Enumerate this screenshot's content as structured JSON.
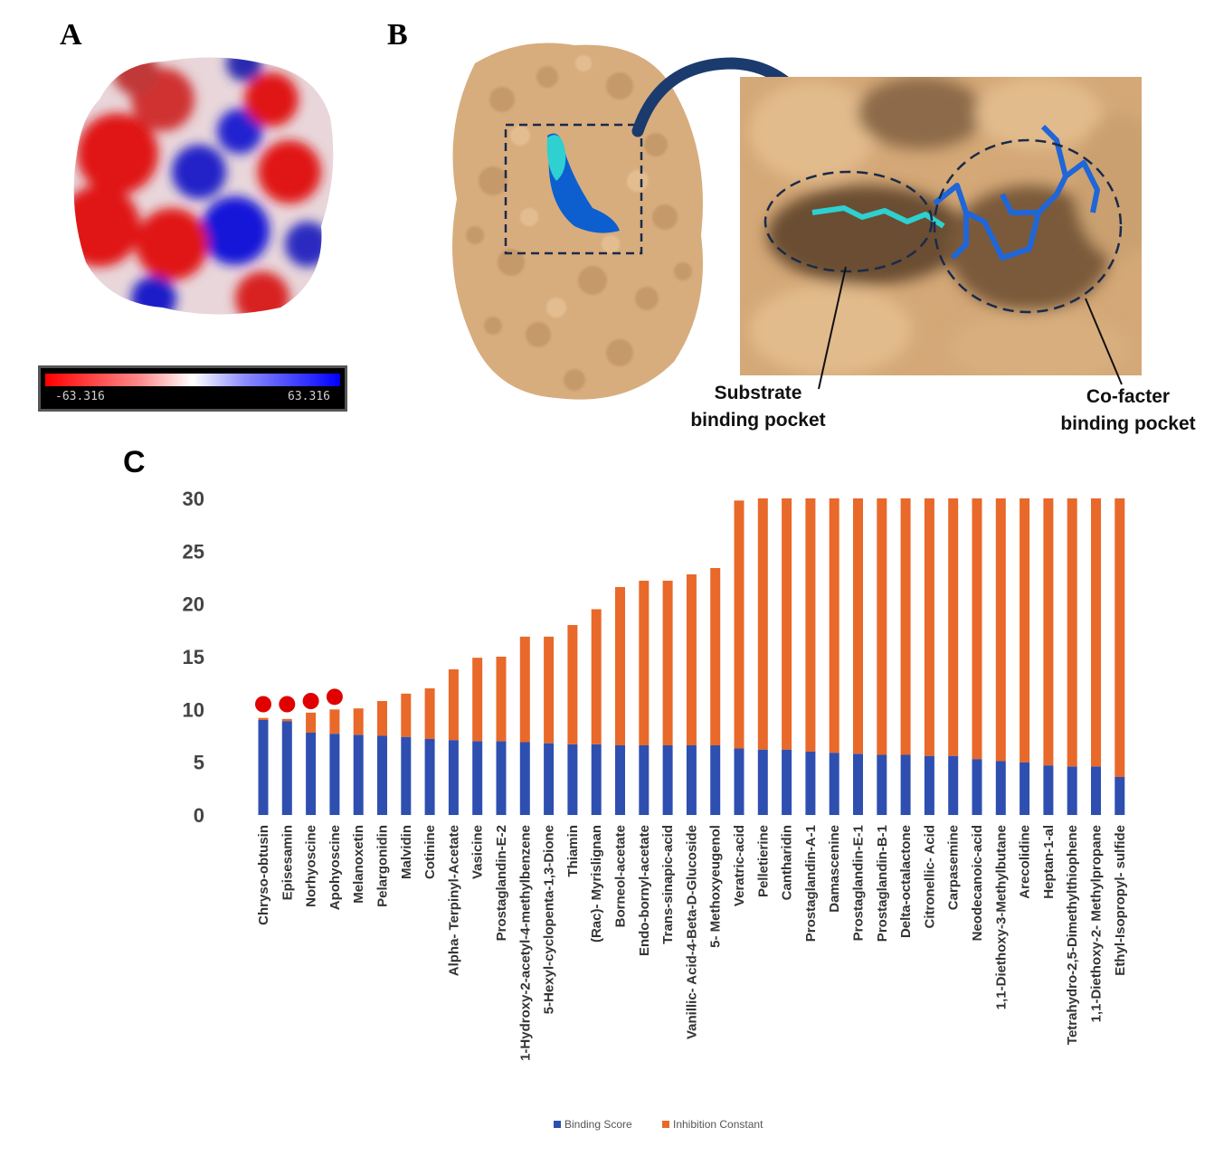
{
  "figure": {
    "panel_a": {
      "letter": "A",
      "colorbar": {
        "min_label": "-63.316",
        "max_label": "63.316"
      }
    },
    "panel_b": {
      "letter": "B",
      "label_substrate": [
        "Substrate",
        "binding pocket"
      ],
      "label_cofactor": [
        "Co-facter",
        "binding pocket"
      ]
    },
    "panel_c": {
      "letter": "C"
    }
  },
  "colors": {
    "binding_score": "#2e4fb0",
    "inhibition_constant": "#e8692a",
    "marker": "#e00000",
    "tan": "#d7ad7e",
    "substrate": "#38d0d0",
    "cofactor": "#1f66d8"
  },
  "chart_data": {
    "type": "bar",
    "stacked": true,
    "title": "",
    "xlabel": "",
    "ylabel": "",
    "ylim": [
      0,
      30
    ],
    "yticks": [
      0,
      5,
      10,
      15,
      20,
      25,
      30
    ],
    "legend_position": "bottom",
    "categories": [
      "Chryso-obtusin",
      "Episesamin",
      "Norhyoscine",
      "Apohyoscine",
      "Melanoxetin",
      "Pelargonidin",
      "Malvidin",
      "Cotinine",
      "Alpha- Terpinyl-Acetate",
      "Vasicine",
      "Prostaglandin-E-2",
      "1-Hydroxy-2-acetyl-4-methylbenzene",
      "5-Hexyl-cyclopenta-1,3-Dione",
      "Thiamin",
      "(Rac)- Myrislignan",
      "Borneol-acetate",
      "Endo-bornyl-acetate",
      "Trans-sinapic-acid",
      "Vanillic- Acid-4-Beta-D-Glucoside",
      "5- Methoxyeugenol",
      "Veratric-acid",
      "Pelletierine",
      "Cantharidin",
      "Prostaglandin-A-1",
      "Damascenine",
      "Prostaglandin-E-1",
      "Prostaglandin-B-1",
      "Delta-octalactone",
      "Citronellic- Acid",
      "Carpasemine",
      "Neodecanoic-acid",
      "1,1-Diethoxy-3-Methylbutane",
      "Arecolidine",
      "Heptan-1-al",
      "Tetrahydro-2,5-Dimethylthiophene",
      "1,1-Diethoxy-2- Methylpropane",
      "Ethyl-Isopropyl- sulfide"
    ],
    "series": [
      {
        "name": "Binding Score",
        "values": [
          9.0,
          8.9,
          7.8,
          7.7,
          7.6,
          7.5,
          7.4,
          7.2,
          7.1,
          7.0,
          7.0,
          6.9,
          6.8,
          6.7,
          6.7,
          6.6,
          6.6,
          6.6,
          6.6,
          6.6,
          6.3,
          6.2,
          6.2,
          6.0,
          5.9,
          5.8,
          5.7,
          5.7,
          5.6,
          5.6,
          5.3,
          5.1,
          5.0,
          4.7,
          4.6,
          4.6,
          3.6
        ]
      },
      {
        "name": "Inhibition Constant",
        "values": [
          0.2,
          0.2,
          1.9,
          2.3,
          2.5,
          3.3,
          4.1,
          4.8,
          6.7,
          7.9,
          8.0,
          10.0,
          10.1,
          11.3,
          12.8,
          15.0,
          15.6,
          15.6,
          16.2,
          16.8,
          23.5,
          23.8,
          23.8,
          24.0,
          24.1,
          24.2,
          24.3,
          24.3,
          24.4,
          24.4,
          24.7,
          24.9,
          25.0,
          25.3,
          25.4,
          25.4,
          26.4
        ]
      }
    ],
    "markers": {
      "description_categories": [
        "Chryso-obtusin",
        "Episesamin",
        "Norhyoscine",
        "Apohyoscine"
      ],
      "values": [
        10.5,
        10.5,
        10.8,
        11.2
      ]
    }
  }
}
